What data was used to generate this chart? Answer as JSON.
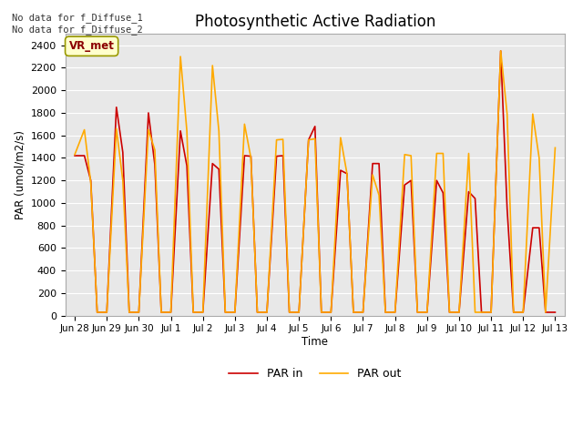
{
  "title": "Photosynthetic Active Radiation",
  "ylabel": "PAR (umol/m2/s)",
  "xlabel": "Time",
  "bg_color": "#e8e8e8",
  "annotation_text": "No data for f_Diffuse_1\nNo data for f_Diffuse_2",
  "vr_label": "VR_met",
  "ylim": [
    0,
    2500
  ],
  "legend_entries": [
    "PAR in",
    "PAR out"
  ],
  "line_colors": [
    "#cc0000",
    "#ffaa00"
  ],
  "x_tick_labels": [
    "Jun 28",
    "Jun 29",
    "Jun 30",
    "Jul 1",
    "Jul 2",
    "Jul 3",
    "Jul 4",
    "Jul 5",
    "Jul 6",
    "Jul 7",
    "Jul 8",
    "Jul 9",
    "Jul 10",
    "Jul 11",
    "Jul 12",
    "Jul 13"
  ],
  "par_in_data": [
    [
      0.0,
      1420
    ],
    [
      0.3,
      1420
    ],
    [
      0.5,
      1200
    ],
    [
      0.7,
      30
    ],
    [
      1.0,
      30
    ],
    [
      1.3,
      1850
    ],
    [
      1.5,
      1450
    ],
    [
      1.7,
      30
    ],
    [
      2.0,
      30
    ],
    [
      2.3,
      1800
    ],
    [
      2.5,
      1340
    ],
    [
      2.7,
      30
    ],
    [
      3.0,
      30
    ],
    [
      3.3,
      1640
    ],
    [
      3.5,
      1330
    ],
    [
      3.7,
      30
    ],
    [
      4.0,
      30
    ],
    [
      4.3,
      1350
    ],
    [
      4.5,
      1300
    ],
    [
      4.7,
      30
    ],
    [
      5.0,
      30
    ],
    [
      5.3,
      1420
    ],
    [
      5.5,
      1415
    ],
    [
      5.7,
      30
    ],
    [
      6.0,
      30
    ],
    [
      6.3,
      1415
    ],
    [
      6.5,
      1420
    ],
    [
      6.7,
      30
    ],
    [
      7.0,
      30
    ],
    [
      7.3,
      1560
    ],
    [
      7.5,
      1680
    ],
    [
      7.7,
      30
    ],
    [
      8.0,
      30
    ],
    [
      8.3,
      1290
    ],
    [
      8.5,
      1260
    ],
    [
      8.7,
      30
    ],
    [
      9.0,
      30
    ],
    [
      9.3,
      1350
    ],
    [
      9.5,
      1350
    ],
    [
      9.7,
      30
    ],
    [
      10.0,
      30
    ],
    [
      10.3,
      1160
    ],
    [
      10.5,
      1200
    ],
    [
      10.7,
      30
    ],
    [
      11.0,
      30
    ],
    [
      11.3,
      1200
    ],
    [
      11.5,
      1090
    ],
    [
      11.7,
      30
    ],
    [
      12.0,
      30
    ],
    [
      12.3,
      1100
    ],
    [
      12.5,
      1040
    ],
    [
      12.7,
      30
    ],
    [
      13.0,
      30
    ],
    [
      13.3,
      2350
    ],
    [
      13.5,
      950
    ],
    [
      13.7,
      30
    ],
    [
      14.0,
      30
    ],
    [
      14.3,
      780
    ],
    [
      14.5,
      780
    ],
    [
      14.7,
      30
    ],
    [
      15.0,
      30
    ]
  ],
  "par_out_data": [
    [
      0.0,
      1430
    ],
    [
      0.3,
      1650
    ],
    [
      0.5,
      1180
    ],
    [
      0.7,
      30
    ],
    [
      1.0,
      30
    ],
    [
      1.3,
      1660
    ],
    [
      1.5,
      1200
    ],
    [
      1.7,
      30
    ],
    [
      2.0,
      30
    ],
    [
      2.3,
      1650
    ],
    [
      2.5,
      1470
    ],
    [
      2.7,
      30
    ],
    [
      3.0,
      30
    ],
    [
      3.3,
      2300
    ],
    [
      3.5,
      1640
    ],
    [
      3.7,
      30
    ],
    [
      4.0,
      30
    ],
    [
      4.3,
      2220
    ],
    [
      4.5,
      1640
    ],
    [
      4.7,
      30
    ],
    [
      5.0,
      30
    ],
    [
      5.3,
      1700
    ],
    [
      5.5,
      1400
    ],
    [
      5.7,
      30
    ],
    [
      6.0,
      30
    ],
    [
      6.3,
      1560
    ],
    [
      6.5,
      1565
    ],
    [
      6.7,
      30
    ],
    [
      7.0,
      30
    ],
    [
      7.3,
      1560
    ],
    [
      7.5,
      1570
    ],
    [
      7.7,
      30
    ],
    [
      8.0,
      30
    ],
    [
      8.3,
      1580
    ],
    [
      8.5,
      1260
    ],
    [
      8.7,
      30
    ],
    [
      9.0,
      30
    ],
    [
      9.3,
      1250
    ],
    [
      9.5,
      1070
    ],
    [
      9.7,
      30
    ],
    [
      10.0,
      30
    ],
    [
      10.3,
      1430
    ],
    [
      10.5,
      1420
    ],
    [
      10.7,
      30
    ],
    [
      11.0,
      30
    ],
    [
      11.3,
      1440
    ],
    [
      11.5,
      1440
    ],
    [
      11.7,
      30
    ],
    [
      12.0,
      30
    ],
    [
      12.3,
      1440
    ],
    [
      12.5,
      30
    ],
    [
      12.7,
      30
    ],
    [
      13.0,
      30
    ],
    [
      13.3,
      2350
    ],
    [
      13.5,
      1790
    ],
    [
      13.7,
      30
    ],
    [
      14.0,
      30
    ],
    [
      14.3,
      1790
    ],
    [
      14.5,
      1400
    ],
    [
      14.7,
      30
    ],
    [
      15.0,
      1490
    ]
  ]
}
